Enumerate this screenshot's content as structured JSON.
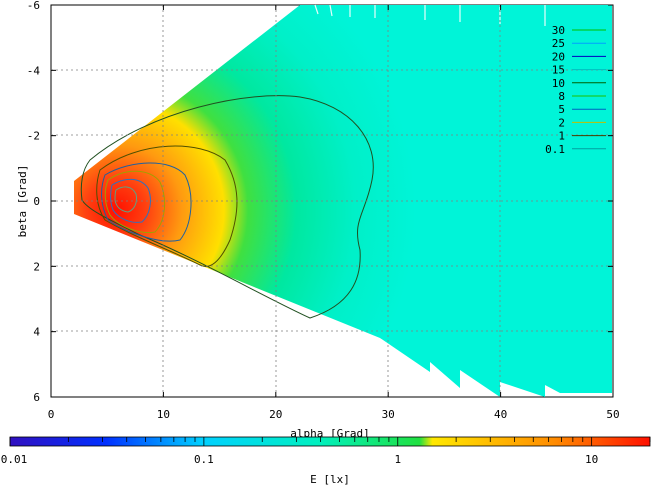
{
  "chart_data": {
    "type": "heatmap",
    "title": "",
    "xlabel": "alpha [Grad]",
    "ylabel": "beta [Grad]",
    "xlim": [
      0,
      50
    ],
    "ylim": [
      -6,
      6
    ],
    "y_inverted": true,
    "x_ticks": [
      "0",
      "10",
      "20",
      "30",
      "40",
      "50"
    ],
    "y_ticks": [
      "-6",
      "-4",
      "-2",
      "0",
      "2",
      "4",
      "6"
    ],
    "grid": true,
    "legend_position": "top-right",
    "contour_legend": [
      {
        "label": "30",
        "color": "#00c000"
      },
      {
        "label": "25",
        "color": "#00a0ff"
      },
      {
        "label": "20",
        "color": "#0000c0"
      },
      {
        "label": "15",
        "color": "#00c0c0"
      },
      {
        "label": "10",
        "color": "#006000"
      },
      {
        "label": "8",
        "color": "#20c000"
      },
      {
        "label": "5",
        "color": "#0060c0"
      },
      {
        "label": "2",
        "color": "#c0c000"
      },
      {
        "label": "1",
        "color": "#404000"
      },
      {
        "label": "0.1",
        "color": "#00a0a0"
      }
    ],
    "colorbar": {
      "label": "E [lx]",
      "scale": "log",
      "min": 0.01,
      "max": 20,
      "tick_labels": [
        "0.01",
        "0.1",
        "1",
        "10"
      ]
    }
  }
}
